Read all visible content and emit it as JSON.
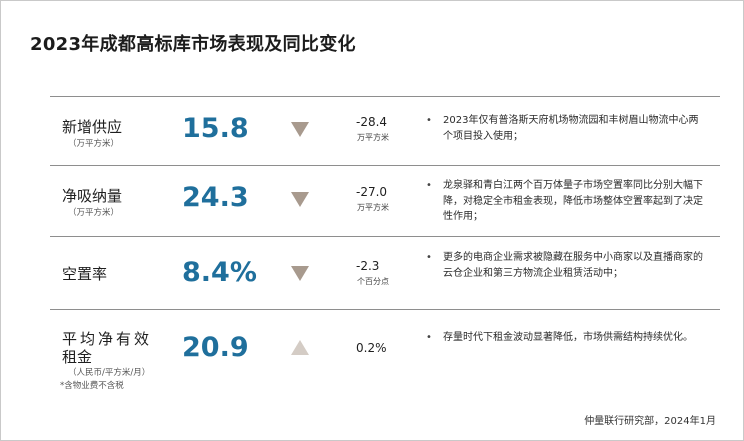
{
  "title": "2023年成都高标库市场表现及同比变化",
  "colors": {
    "value": "#1f6f9c",
    "arrow_down": "#a89a8e",
    "arrow_up": "#d4ccc5"
  },
  "rows": [
    {
      "label": "新增供应",
      "sub": "（万平方米）",
      "value": "15.8",
      "direction": "down",
      "change": "-28.4",
      "change_unit": "万平方米",
      "desc": "2023年仅有普洛斯天府机场物流园和丰树眉山物流中心两个项目投入使用；"
    },
    {
      "label": "净吸纳量",
      "sub": "（万平方米）",
      "value": "24.3",
      "direction": "down",
      "change": "-27.0",
      "change_unit": "万平方米",
      "desc": "龙泉驿和青白江两个百万体量子市场空置率同比分别大幅下降，对稳定全市租金表现，降低市场整体空置率起到了决定性作用；"
    },
    {
      "label": "空置率",
      "sub": "",
      "value": "8.4%",
      "direction": "down",
      "change": "-2.3",
      "change_unit": "个百分点",
      "desc": "更多的电商企业需求被隐藏在服务中小商家以及直播商家的云仓企业和第三方物流企业租赁活动中；"
    },
    {
      "label_line1": "平均净有效",
      "label_line2": "租金",
      "sub": "（人民币/平方米/月）",
      "note": "*含物业费不含税",
      "value": "20.9",
      "direction": "up",
      "change": "0.2%",
      "change_unit": "",
      "desc": "存量时代下租金波动显著降低，市场供需结构持续优化。"
    }
  ],
  "bullet": "•",
  "footer": "仲量联行研究部，2024年1月"
}
